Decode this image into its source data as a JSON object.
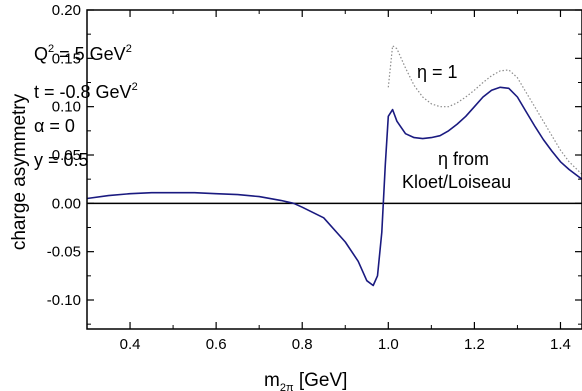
{
  "chart_data": {
    "type": "line",
    "xlabel": {
      "main": "m",
      "sub": "2π",
      "unit": " [GeV]"
    },
    "ylabel": "charge asymmetry",
    "xlim": [
      0.3,
      1.45
    ],
    "ylim": [
      -0.13,
      0.2
    ],
    "x_ticks": [
      "0.4",
      "0.6",
      "0.8",
      "1.0",
      "1.2",
      "1.4"
    ],
    "x_tick_values": [
      0.4,
      0.6,
      0.8,
      1.0,
      1.2,
      1.4
    ],
    "y_ticks": [
      "0.20",
      "0.15",
      "0.10",
      "0.05",
      "0.00",
      "-0.05",
      "-0.10"
    ],
    "y_tick_values": [
      0.2,
      0.15,
      0.1,
      0.05,
      0.0,
      -0.05,
      -0.1
    ],
    "zero_line": true,
    "parameters": {
      "q2": {
        "base": "Q",
        "exp1": "2",
        "mid": " = 5 GeV",
        "exp2": "2"
      },
      "t": {
        "text": "t = -0.8 GeV",
        "exp": "2"
      },
      "alpha": "α = 0",
      "y": "y = 0.5"
    },
    "series": [
      {
        "name": "η = 1",
        "style": "dotted",
        "color": "#8c8c8c",
        "x": [
          1.0,
          1.01,
          1.02,
          1.04,
          1.06,
          1.08,
          1.1,
          1.12,
          1.14,
          1.16,
          1.18,
          1.2,
          1.22,
          1.24,
          1.26,
          1.28,
          1.3,
          1.32,
          1.34,
          1.36,
          1.38,
          1.4,
          1.42,
          1.45
        ],
        "y": [
          0.12,
          0.163,
          0.16,
          0.14,
          0.122,
          0.11,
          0.103,
          0.1,
          0.1,
          0.104,
          0.11,
          0.117,
          0.125,
          0.132,
          0.137,
          0.138,
          0.13,
          0.115,
          0.1,
          0.085,
          0.07,
          0.055,
          0.043,
          0.03
        ]
      },
      {
        "name_lines": [
          "η from",
          "Kloet/Loiseau"
        ],
        "style": "solid",
        "color": "#1a1a80",
        "x": [
          0.3,
          0.35,
          0.4,
          0.45,
          0.5,
          0.55,
          0.6,
          0.65,
          0.7,
          0.75,
          0.78,
          0.8,
          0.85,
          0.9,
          0.93,
          0.95,
          0.965,
          0.975,
          0.985,
          0.993,
          1.0,
          1.01,
          1.02,
          1.04,
          1.06,
          1.08,
          1.1,
          1.12,
          1.14,
          1.16,
          1.18,
          1.2,
          1.22,
          1.24,
          1.26,
          1.28,
          1.3,
          1.32,
          1.34,
          1.36,
          1.38,
          1.4,
          1.42,
          1.45
        ],
        "y": [
          0.005,
          0.008,
          0.01,
          0.011,
          0.011,
          0.011,
          0.01,
          0.009,
          0.007,
          0.003,
          0.0,
          -0.004,
          -0.015,
          -0.04,
          -0.06,
          -0.08,
          -0.085,
          -0.075,
          -0.03,
          0.04,
          0.09,
          0.097,
          0.085,
          0.072,
          0.068,
          0.067,
          0.068,
          0.07,
          0.075,
          0.082,
          0.09,
          0.1,
          0.11,
          0.117,
          0.12,
          0.119,
          0.11,
          0.095,
          0.08,
          0.066,
          0.054,
          0.043,
          0.035,
          0.025
        ]
      }
    ]
  }
}
